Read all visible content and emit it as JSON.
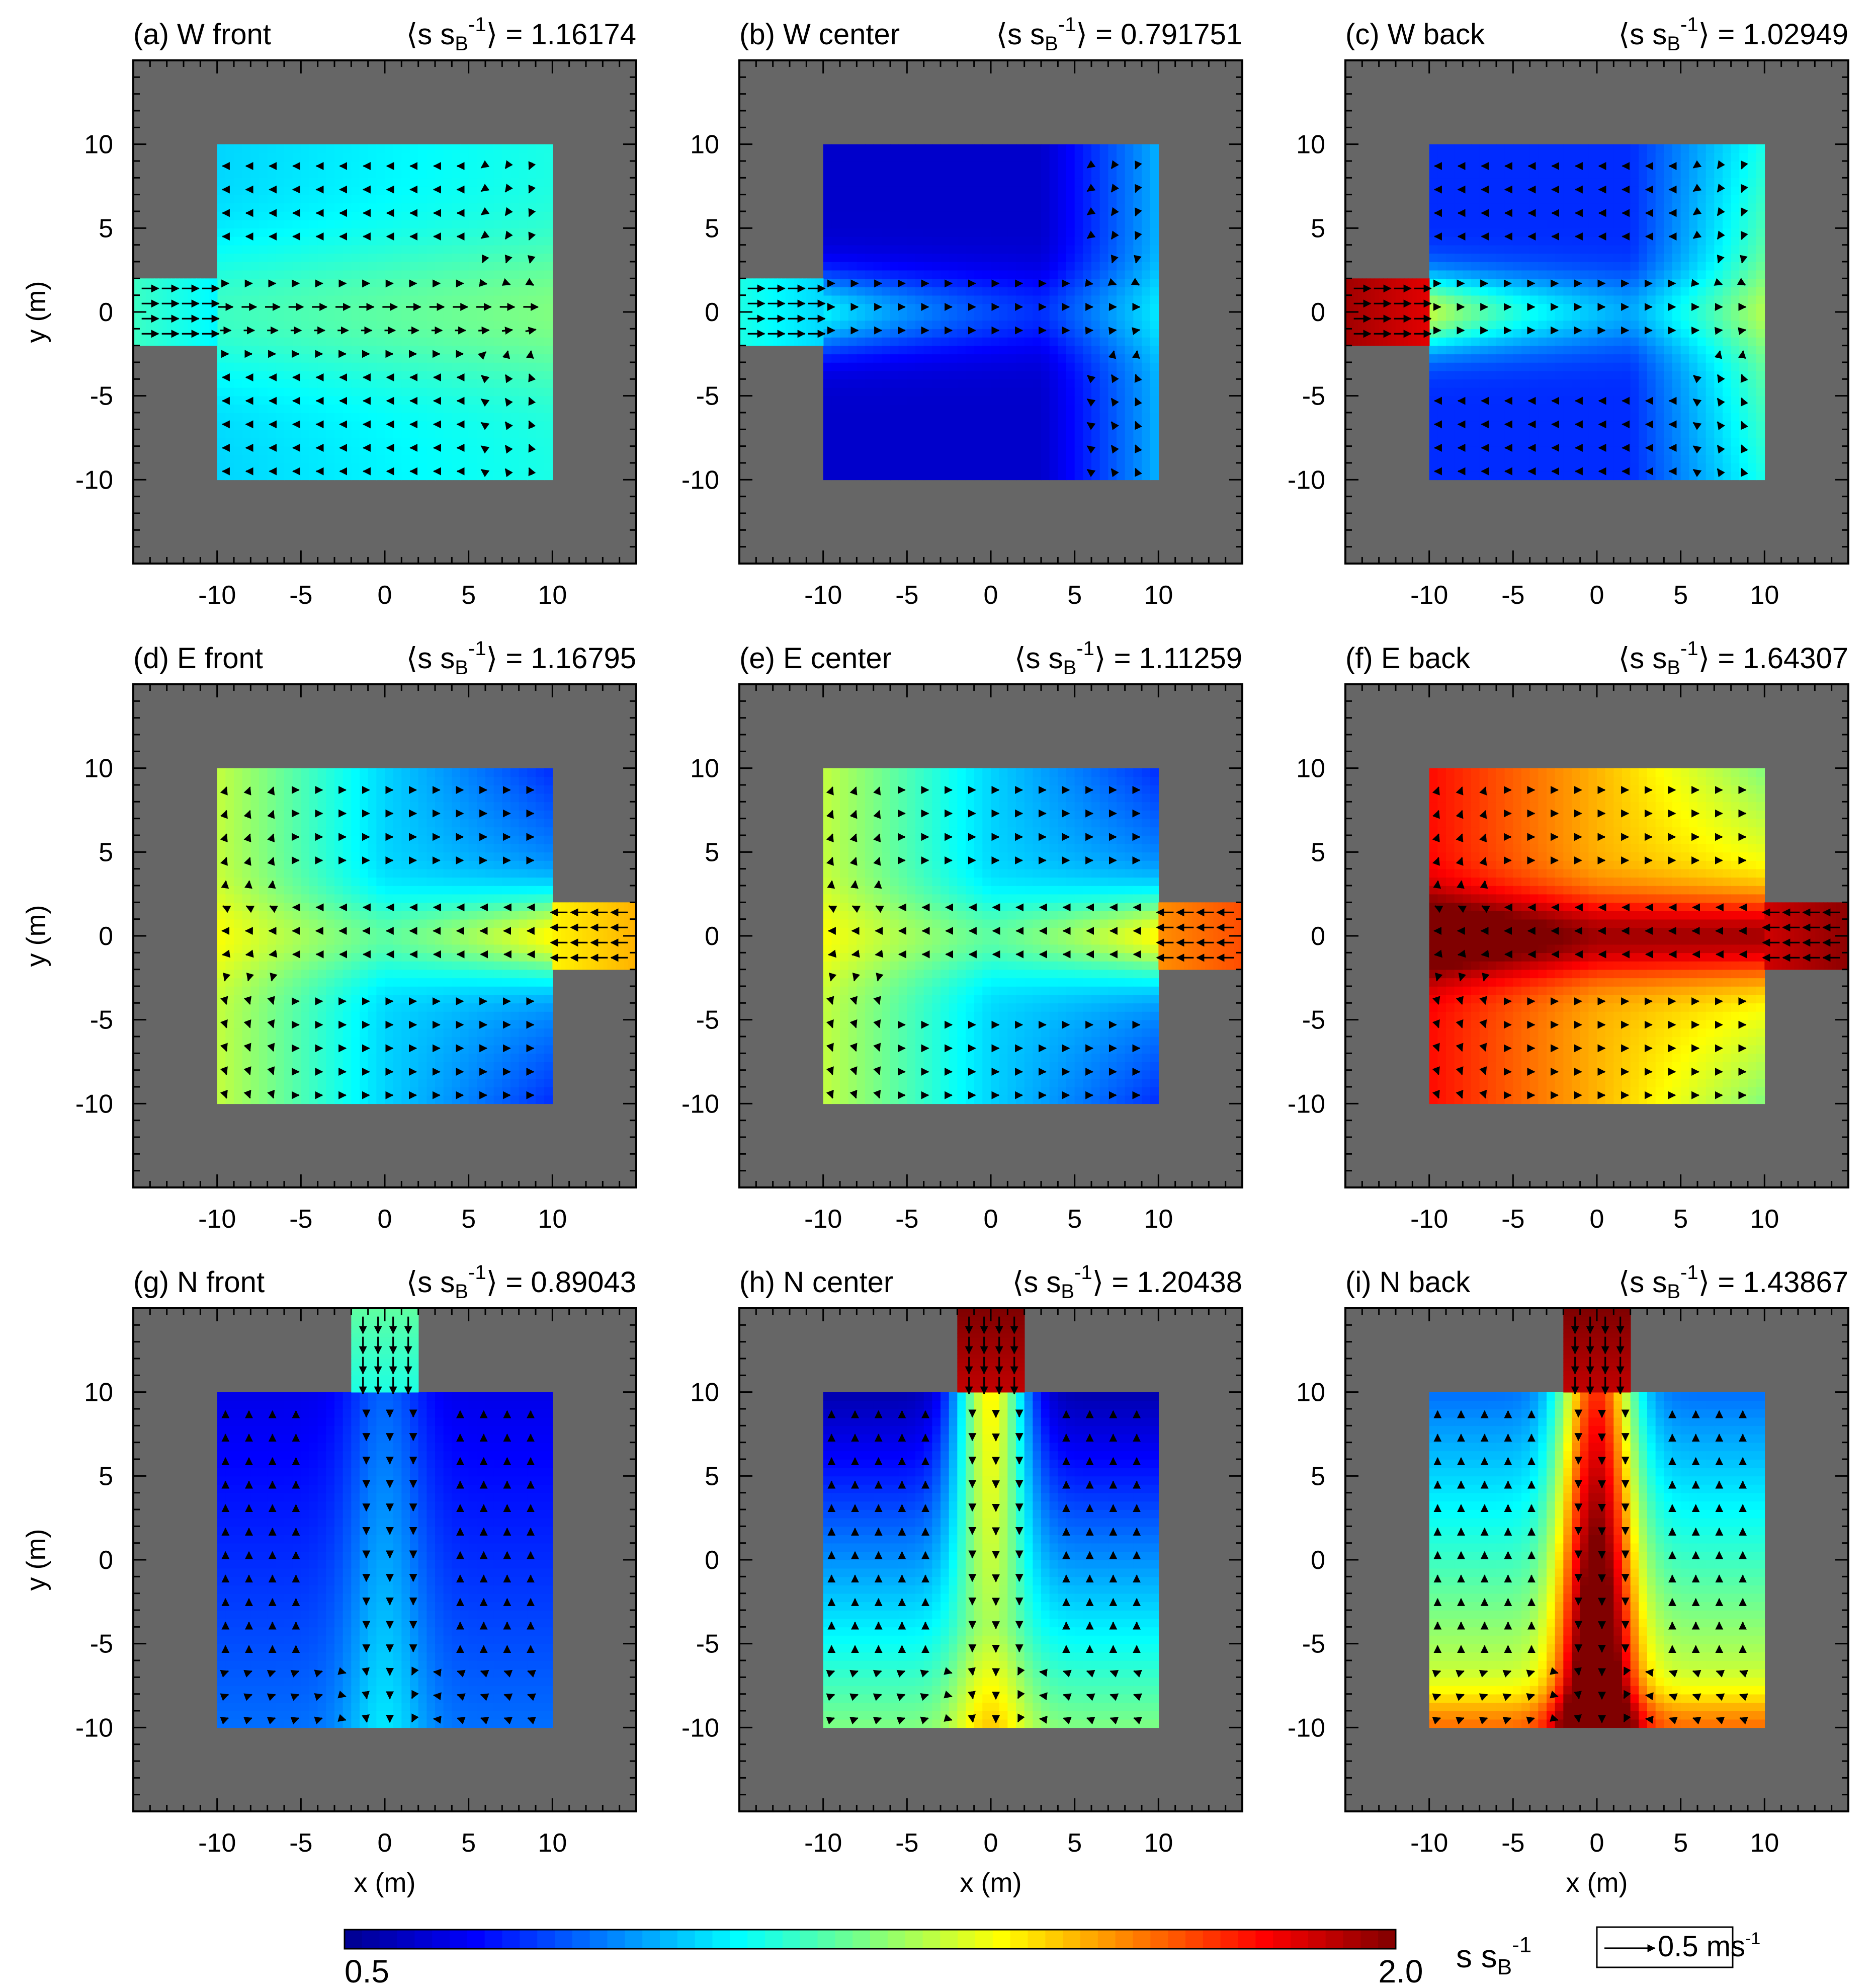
{
  "chart_data": {
    "type": "heatmap",
    "description_units": "x (m), y (m); color = s s_B^-1; arrows = velocity",
    "xlabel": "x (m)",
    "ylabel": "y (m)",
    "xlim": [
      -15,
      15
    ],
    "ylim": [
      -15,
      15
    ],
    "xticks": [
      -10,
      -5,
      0,
      5,
      10
    ],
    "yticks": [
      -10,
      -5,
      0,
      5,
      10
    ],
    "room": {
      "x": [
        -10,
        10
      ],
      "y": [
        -10,
        10
      ]
    },
    "colorbar": {
      "label_main": "s  s",
      "label_sub": "B",
      "label_sup": "-1",
      "min": 0.5,
      "max": 2.0,
      "min_label": "0.5",
      "max_label": "2.0",
      "colormap": [
        "#00008f",
        "#0000ff",
        "#0080ff",
        "#00ffff",
        "#80ff80",
        "#ffff00",
        "#ff8000",
        "#ff0000",
        "#800000"
      ]
    },
    "reference_vector": {
      "label": "0.5 ms",
      "sup": "-1",
      "value": 0.5
    },
    "panels": [
      {
        "id": "a",
        "title": "(a) W front",
        "mean_label": "⟨s s",
        "mean_sub": "B",
        "mean_sup": "-1",
        "mean_tail": "⟩ = 1.16174",
        "mean": 1.16174,
        "inlet": "W",
        "inlet_value": 1.15,
        "base": 1.05,
        "pattern": "gyre",
        "vec_scale": 1.0
      },
      {
        "id": "b",
        "title": "(b) W center",
        "mean_label": "⟨s s",
        "mean_sub": "B",
        "mean_sup": "-1",
        "mean_tail": "⟩ = 0.791751",
        "mean": 0.791751,
        "inlet": "W",
        "inlet_value": 1.1,
        "base": 0.6,
        "pattern": "east-rise",
        "vec_scale": 0.35
      },
      {
        "id": "c",
        "title": "(c) W back",
        "mean_label": "⟨s s",
        "mean_sub": "B",
        "mean_sup": "-1",
        "mean_tail": "⟩ = 1.02949",
        "mean": 1.02949,
        "inlet": "W",
        "inlet_value": 1.95,
        "base": 0.75,
        "pattern": "east-rise-strong",
        "vec_scale": 0.4
      },
      {
        "id": "d",
        "title": "(d) E front",
        "mean_label": "⟨s s",
        "mean_sub": "B",
        "mean_sup": "-1",
        "mean_tail": "⟩ = 1.16795",
        "mean": 1.16795,
        "inlet": "E",
        "inlet_value": 1.55,
        "base": 1.0,
        "pattern": "west-rise",
        "vec_scale": 0.45
      },
      {
        "id": "e",
        "title": "(e) E center",
        "mean_label": "⟨s s",
        "mean_sub": "B",
        "mean_sup": "-1",
        "mean_tail": "⟩ = 1.11259",
        "mean": 1.11259,
        "inlet": "E",
        "inlet_value": 1.7,
        "base": 1.0,
        "pattern": "west-rise",
        "vec_scale": 0.4
      },
      {
        "id": "f",
        "title": "(f) E back",
        "mean_label": "⟨s s",
        "mean_sub": "B",
        "mean_sup": "-1",
        "mean_tail": "⟩ = 1.64307",
        "mean": 1.64307,
        "inlet": "E",
        "inlet_value": 1.98,
        "base": 1.55,
        "pattern": "west-rise-hot",
        "vec_scale": 0.45
      },
      {
        "id": "g",
        "title": "(g) N front",
        "mean_label": "⟨s s",
        "mean_sub": "B",
        "mean_sup": "-1",
        "mean_tail": "⟩ = 0.89043",
        "mean": 0.89043,
        "inlet": "N",
        "inlet_value": 1.2,
        "base": 0.75,
        "pattern": "south-rise",
        "vec_scale": 0.4
      },
      {
        "id": "h",
        "title": "(h) N center",
        "mean_label": "⟨s s",
        "mean_sub": "B",
        "mean_sup": "-1",
        "mean_tail": "⟩ = 1.20438",
        "mean": 1.20438,
        "inlet": "N",
        "inlet_value": 2.0,
        "base": 0.9,
        "pattern": "south-rise-strong",
        "vec_scale": 0.45
      },
      {
        "id": "i",
        "title": "(i) N back",
        "mean_label": "⟨s s",
        "mean_sub": "B",
        "mean_sup": "-1",
        "mean_tail": "⟩ = 1.43867",
        "mean": 1.43867,
        "inlet": "N",
        "inlet_value": 2.0,
        "base": 1.15,
        "pattern": "south-rise-hot",
        "vec_scale": 0.45
      }
    ]
  }
}
